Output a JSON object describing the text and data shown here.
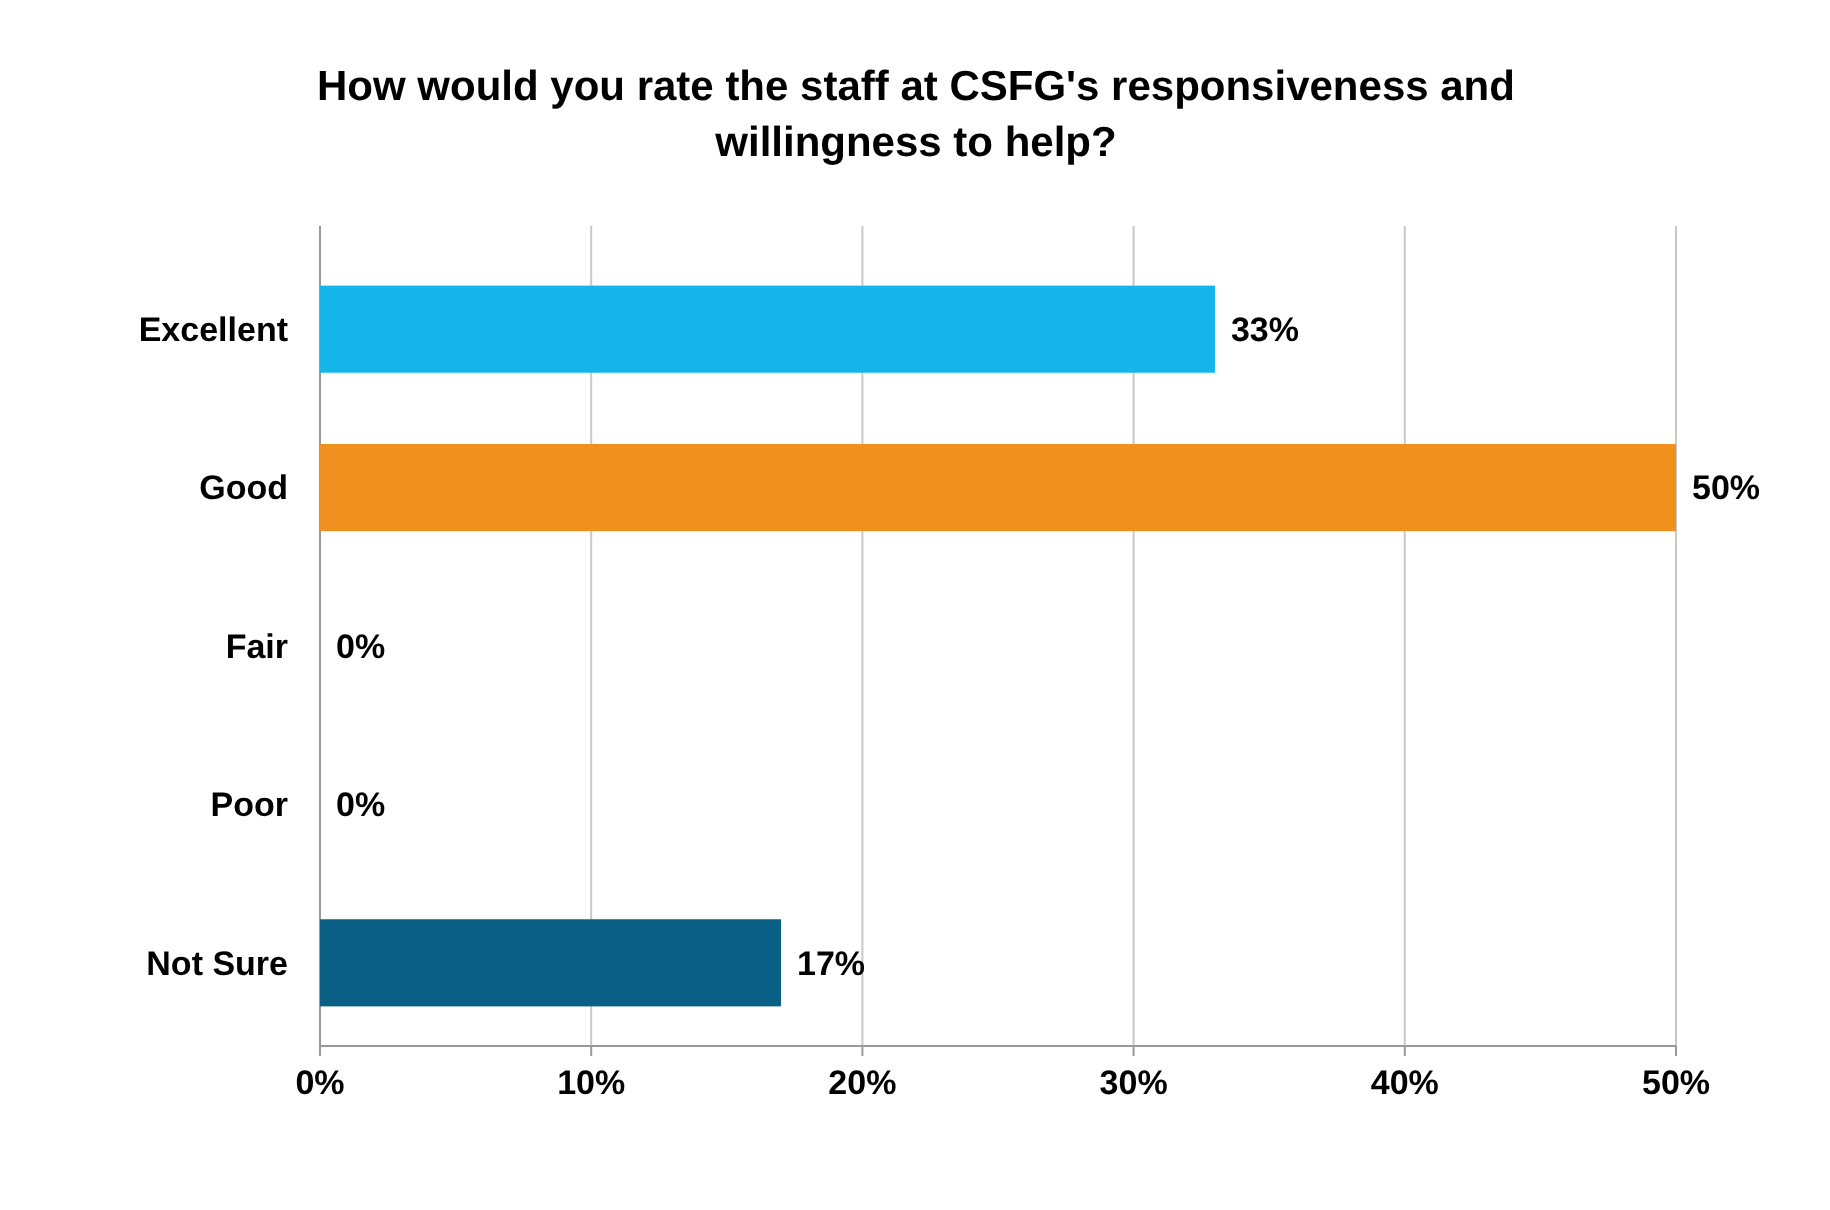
{
  "chart_data": {
    "type": "bar",
    "orientation": "horizontal",
    "title": "How would you rate the staff at CSFG's responsiveness and willingness to help?",
    "categories": [
      "Excellent",
      "Good",
      "Fair",
      "Poor",
      "Not Sure"
    ],
    "values": [
      33,
      50,
      0,
      0,
      17
    ],
    "colors": [
      "#15b4e9",
      "#f0901f",
      "#0b5a78",
      "#333333",
      "#0a6084"
    ],
    "value_labels": [
      "33%",
      "50%",
      "0%",
      "0%",
      "17%"
    ],
    "xlim": [
      0,
      50
    ],
    "xticks": [
      {
        "value": 0,
        "label": "0%"
      },
      {
        "value": 10,
        "label": "10%"
      },
      {
        "value": 20,
        "label": "20%"
      },
      {
        "value": 30,
        "label": "30%"
      },
      {
        "value": 40,
        "label": "40%"
      },
      {
        "value": 50,
        "label": "50%"
      }
    ],
    "grid": "x"
  }
}
